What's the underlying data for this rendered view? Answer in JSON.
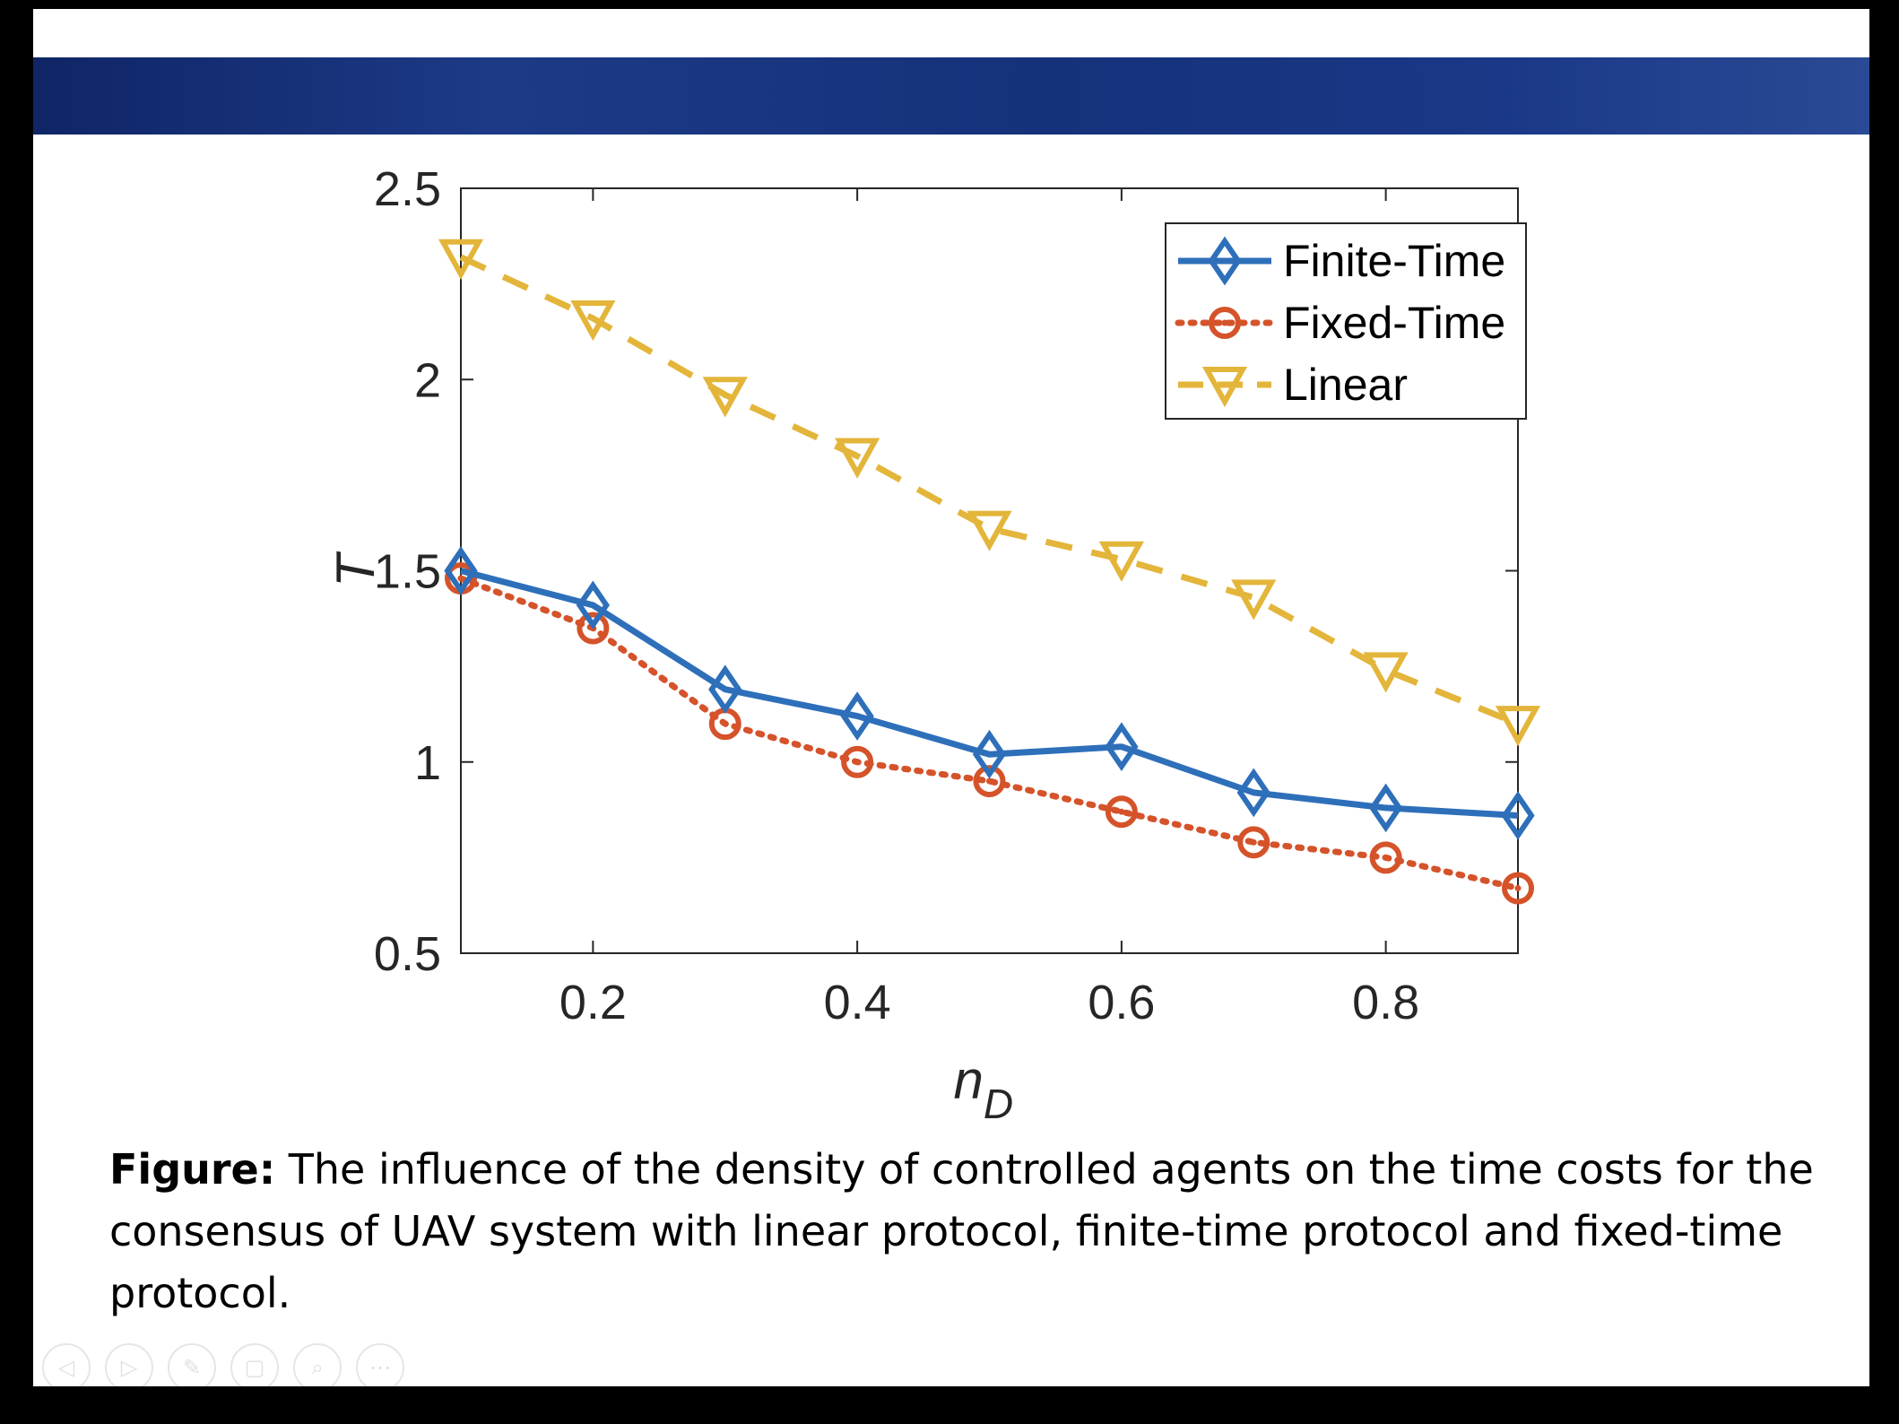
{
  "caption": {
    "label": "Figure:",
    "text": " The influence of the density of controlled agents on the time costs for the consensus of UAV system with linear protocol, finite-time protocol and fixed-time protocol."
  },
  "toolbar": [
    {
      "name": "previous-icon",
      "glyph": "◁"
    },
    {
      "name": "next-icon",
      "glyph": "▷"
    },
    {
      "name": "pen-icon",
      "glyph": "✎"
    },
    {
      "name": "slides-icon",
      "glyph": "▢"
    },
    {
      "name": "zoom-icon",
      "glyph": "⌕"
    },
    {
      "name": "more-icon",
      "glyph": "⋯"
    }
  ],
  "chart_data": {
    "type": "line",
    "xlabel": "n",
    "xlabel_sub": "D",
    "ylabel": "T",
    "xlim": [
      0.1,
      0.9
    ],
    "ylim": [
      0.5,
      2.5
    ],
    "xticks": [
      0.2,
      0.4,
      0.6,
      0.8
    ],
    "yticks": [
      0.5,
      1,
      1.5,
      2,
      2.5
    ],
    "legend_position": "top-right",
    "x": [
      0.1,
      0.2,
      0.3,
      0.4,
      0.5,
      0.6,
      0.7,
      0.8,
      0.9
    ],
    "series": [
      {
        "name": "Finite-Time",
        "color": "#2e6fba",
        "marker": "diamond",
        "line": "solid",
        "values": [
          1.5,
          1.41,
          1.19,
          1.12,
          1.02,
          1.04,
          0.92,
          0.88,
          0.86
        ]
      },
      {
        "name": "Fixed-Time",
        "color": "#d5532a",
        "marker": "circle",
        "line": "dotted",
        "values": [
          1.48,
          1.35,
          1.1,
          1.0,
          0.95,
          0.87,
          0.79,
          0.75,
          0.67
        ]
      },
      {
        "name": "Linear",
        "color": "#e3b53a",
        "marker": "triangle-down",
        "line": "dashed",
        "values": [
          2.32,
          2.16,
          1.96,
          1.8,
          1.61,
          1.53,
          1.43,
          1.24,
          1.1
        ]
      }
    ]
  }
}
